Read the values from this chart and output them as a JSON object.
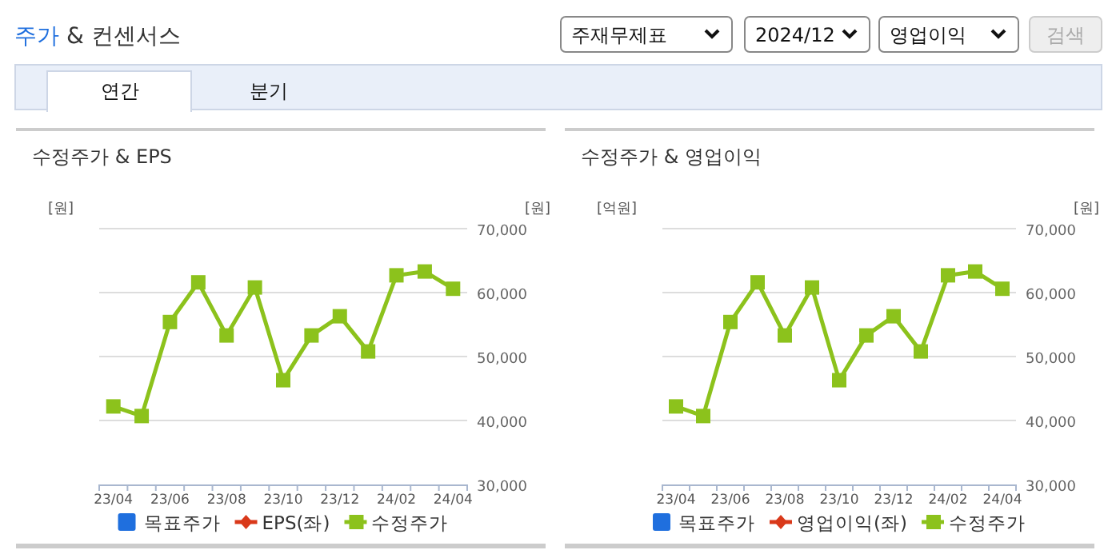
{
  "chart_data": [
    {
      "type": "line",
      "title": "수정주가 & EPS",
      "ylabel": "[원]",
      "y2label": "[원]",
      "annotations": [
        "주가 & 컨센서스",
        "주재무제표",
        "2024/12",
        "영업이익",
        "검색",
        "연간",
        "분기"
      ],
      "categories": [
        "23/04",
        null,
        "23/06",
        null,
        "23/08",
        null,
        "23/10",
        null,
        "23/12",
        null,
        "24/02",
        null,
        "24/04"
      ],
      "series": [
        {
          "name": "목표주가",
          "type": "bar",
          "color": "#1f6fde",
          "values": [
            null,
            null,
            null,
            null,
            null,
            null,
            null,
            null,
            null,
            null,
            null,
            null,
            null
          ]
        },
        {
          "name": "EPS(좌)",
          "color": "#d9391a",
          "marker": "diamond",
          "values": [
            null,
            null,
            null,
            null,
            null,
            null,
            null,
            null,
            null,
            null,
            null,
            null,
            null
          ]
        },
        {
          "name": "수정주가",
          "color": "#8cc21c",
          "axis": "y2",
          "marker": "square",
          "values": [
            42200,
            40700,
            55400,
            61600,
            53300,
            60800,
            46300,
            53300,
            56300,
            50800,
            62700,
            63300,
            60600
          ]
        }
      ],
      "y2lim": [
        30000,
        70000
      ],
      "y2ticks": [
        {
          "value": 30000,
          "label": "30,000"
        },
        {
          "value": 40000,
          "label": "40,000"
        },
        {
          "value": 50000,
          "label": "50,000"
        },
        {
          "value": 60000,
          "label": "60,000"
        },
        {
          "value": 70000,
          "label": "70,000"
        }
      ],
      "grid": "y",
      "legend": "bottom"
    },
    {
      "type": "line",
      "title": "수정주가 & 영업이익",
      "ylabel": "[억원]",
      "y2label": "[원]",
      "categories": [
        "23/04",
        null,
        "23/06",
        null,
        "23/08",
        null,
        "23/10",
        null,
        "23/12",
        null,
        "24/02",
        null,
        "24/04"
      ],
      "series": [
        {
          "name": "목표주가",
          "type": "bar",
          "color": "#1f6fde",
          "values": [
            null,
            null,
            null,
            null,
            null,
            null,
            null,
            null,
            null,
            null,
            null,
            null,
            null
          ]
        },
        {
          "name": "영업이익(좌)",
          "color": "#d9391a",
          "marker": "diamond",
          "values": [
            null,
            null,
            null,
            null,
            null,
            null,
            null,
            null,
            null,
            null,
            null,
            null,
            null
          ]
        },
        {
          "name": "수정주가",
          "color": "#8cc21c",
          "axis": "y2",
          "marker": "square",
          "values": [
            42200,
            40700,
            55400,
            61600,
            53300,
            60800,
            46300,
            53300,
            56300,
            50800,
            62700,
            63300,
            60600
          ]
        }
      ],
      "y2lim": [
        30000,
        70000
      ],
      "y2ticks": [
        {
          "value": 30000,
          "label": "30,000"
        },
        {
          "value": 40000,
          "label": "40,000"
        },
        {
          "value": 50000,
          "label": "50,000"
        },
        {
          "value": 60000,
          "label": "60,000"
        },
        {
          "value": 70000,
          "label": "70,000"
        }
      ],
      "grid": "y",
      "legend": "bottom"
    }
  ]
}
